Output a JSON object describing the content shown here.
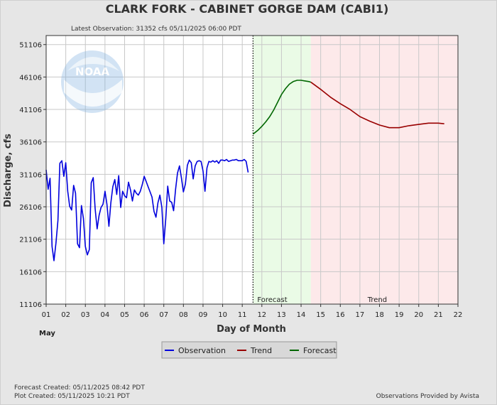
{
  "title": "CLARK FORK - CABINET GORGE DAM  (CABI1)",
  "latest_observation": "Latest Observation: 31352 cfs 05/11/2025 06:00 PDT",
  "footer": {
    "forecast_created": "Forecast Created: 05/11/2025 08:42 PDT",
    "plot_created": "Plot Created: 05/11/2025 10:21 PDT",
    "provider": "Observations Provided by Avista"
  },
  "logo_text": "NOAA",
  "chart_data": {
    "type": "line",
    "xlabel": "Day of Month",
    "ylabel": "Discharge, cfs",
    "month_label": "May",
    "xlim": [
      1,
      22
    ],
    "ylim": [
      11106,
      52500
    ],
    "yticks": [
      11106,
      16106,
      21106,
      26106,
      31106,
      36106,
      41106,
      46106,
      51106
    ],
    "ytick_labels": [
      "11106",
      "16106",
      "21106",
      "26106",
      "31106",
      "36106",
      "41106",
      "46106",
      "51106"
    ],
    "xticks": [
      1,
      2,
      3,
      4,
      5,
      6,
      7,
      8,
      9,
      10,
      11,
      12,
      13,
      14,
      15,
      16,
      17,
      18,
      19,
      20,
      21,
      22
    ],
    "xtick_labels": [
      "01",
      "02",
      "03",
      "04",
      "05",
      "06",
      "07",
      "08",
      "09",
      "10",
      "11",
      "12",
      "13",
      "14",
      "15",
      "16",
      "17",
      "18",
      "19",
      "20",
      "21",
      "22"
    ],
    "grid": true,
    "legend_position": "bottom-center",
    "forecast_start": 11.55,
    "forecast_zone": {
      "label": "Forecast",
      "x": [
        11.55,
        14.5
      ],
      "color": "#eafbe6"
    },
    "trend_zone": {
      "label": "Trend",
      "x": [
        14.5,
        22
      ],
      "color": "#fde9ea"
    },
    "series": [
      {
        "name": "Observation",
        "color": "#0000dd",
        "x": [
          1.0,
          1.1,
          1.2,
          1.3,
          1.4,
          1.5,
          1.6,
          1.7,
          1.8,
          1.9,
          2.0,
          2.1,
          2.2,
          2.3,
          2.4,
          2.5,
          2.6,
          2.7,
          2.8,
          2.9,
          3.0,
          3.1,
          3.2,
          3.3,
          3.4,
          3.5,
          3.6,
          3.7,
          3.8,
          3.9,
          4.0,
          4.1,
          4.2,
          4.3,
          4.4,
          4.5,
          4.6,
          4.7,
          4.8,
          4.9,
          5.0,
          5.1,
          5.2,
          5.3,
          5.4,
          5.5,
          5.6,
          5.7,
          5.8,
          5.9,
          6.0,
          6.1,
          6.2,
          6.3,
          6.4,
          6.5,
          6.6,
          6.7,
          6.8,
          6.9,
          7.0,
          7.1,
          7.2,
          7.3,
          7.4,
          7.5,
          7.6,
          7.7,
          7.8,
          7.9,
          8.0,
          8.1,
          8.2,
          8.3,
          8.4,
          8.5,
          8.6,
          8.7,
          8.8,
          8.9,
          9.0,
          9.1,
          9.2,
          9.3,
          9.4,
          9.5,
          9.6,
          9.7,
          9.8,
          9.9,
          10.0,
          10.1,
          10.2,
          10.3,
          10.4,
          10.5,
          10.6,
          10.7,
          10.8,
          10.9,
          11.0,
          11.1,
          11.2,
          11.3
        ],
        "y": [
          31800,
          28800,
          30500,
          20000,
          17800,
          20500,
          24000,
          32800,
          33200,
          30800,
          32900,
          28500,
          26200,
          25600,
          29400,
          28200,
          20400,
          19800,
          26300,
          24300,
          20000,
          18700,
          19500,
          29800,
          30600,
          25800,
          22700,
          24800,
          26000,
          26500,
          28500,
          26500,
          23100,
          26700,
          29200,
          30300,
          28000,
          30900,
          26000,
          28500,
          27800,
          27500,
          29900,
          28700,
          27000,
          28700,
          28200,
          27900,
          28500,
          29500,
          30800,
          30000,
          29200,
          28400,
          27600,
          25400,
          24500,
          26700,
          27900,
          26000,
          20400,
          24300,
          29300,
          27000,
          26800,
          25500,
          28800,
          31300,
          32400,
          30500,
          28400,
          29600,
          32500,
          33300,
          32900,
          30400,
          32400,
          33100,
          33200,
          33100,
          31600,
          28500,
          32100,
          33100,
          33000,
          33200,
          33000,
          33200,
          32800,
          33300,
          33300,
          33200,
          33400,
          33100,
          33200,
          33300,
          33300,
          33400,
          33200,
          33200,
          33200,
          33400,
          33100,
          31400
        ]
      },
      {
        "name": "Forecast",
        "color": "#006600",
        "x": [
          11.55,
          11.8,
          12.0,
          12.2,
          12.4,
          12.6,
          12.8,
          13.0,
          13.2,
          13.4,
          13.6,
          13.8,
          14.0,
          14.2,
          14.4,
          14.5
        ],
        "y": [
          37300,
          37900,
          38500,
          39200,
          40000,
          41000,
          42200,
          43400,
          44300,
          45000,
          45400,
          45600,
          45600,
          45500,
          45400,
          45300
        ]
      },
      {
        "name": "Trend",
        "color": "#990000",
        "x": [
          14.5,
          15.0,
          15.5,
          16.0,
          16.5,
          17.0,
          17.5,
          18.0,
          18.5,
          19.0,
          19.5,
          20.0,
          20.5,
          21.0,
          21.3
        ],
        "y": [
          45300,
          44200,
          43000,
          42000,
          41100,
          40000,
          39300,
          38700,
          38300,
          38300,
          38600,
          38800,
          39000,
          39000,
          38900
        ]
      }
    ],
    "legend": [
      "Observation",
      "Trend",
      "Forecast"
    ]
  }
}
